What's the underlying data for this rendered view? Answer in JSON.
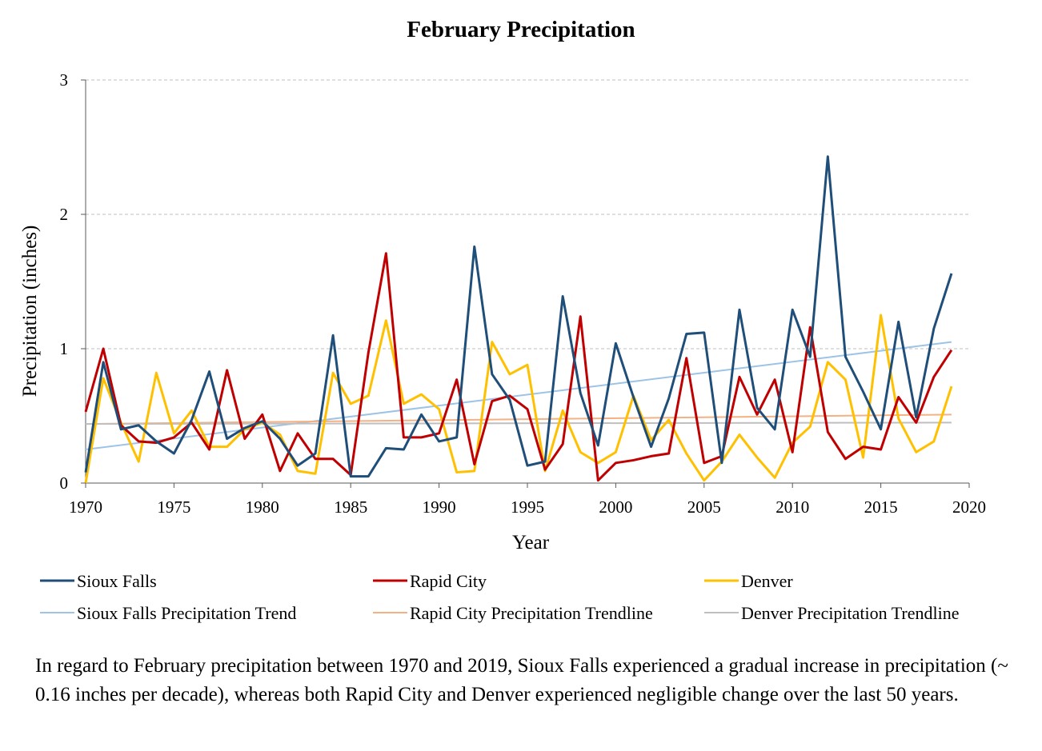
{
  "chart_data": {
    "type": "line",
    "title": "February Precipitation",
    "xlabel": "Year",
    "ylabel": "Precipitation (inches)",
    "xlim": [
      1970,
      2020
    ],
    "ylim": [
      0,
      3
    ],
    "x_ticks": [
      "1970",
      "1975",
      "1980",
      "1985",
      "1990",
      "1995",
      "2000",
      "2005",
      "2010",
      "2015",
      "2020"
    ],
    "y_ticks": [
      "0",
      "1",
      "2",
      "3"
    ],
    "grid": "horizontal dashed",
    "legend_position": "bottom",
    "x": [
      1970,
      1971,
      1972,
      1973,
      1974,
      1975,
      1976,
      1977,
      1978,
      1979,
      1980,
      1981,
      1982,
      1983,
      1984,
      1985,
      1986,
      1987,
      1988,
      1989,
      1990,
      1991,
      1992,
      1993,
      1994,
      1995,
      1996,
      1997,
      1998,
      1999,
      2000,
      2001,
      2002,
      2003,
      2004,
      2005,
      2006,
      2007,
      2008,
      2009,
      2010,
      2011,
      2012,
      2013,
      2014,
      2015,
      2016,
      2017,
      2018,
      2019
    ],
    "series": [
      {
        "name": "Sioux Falls",
        "color": "#1f4e79",
        "values": [
          0.08,
          0.9,
          0.4,
          0.43,
          0.31,
          0.22,
          0.47,
          0.83,
          0.33,
          0.41,
          0.46,
          0.33,
          0.13,
          0.22,
          1.1,
          0.05,
          0.05,
          0.26,
          0.25,
          0.51,
          0.31,
          0.34,
          1.76,
          0.81,
          0.62,
          0.13,
          0.16,
          1.39,
          0.67,
          0.28,
          1.04,
          0.64,
          0.27,
          0.63,
          1.11,
          1.12,
          0.15,
          1.29,
          0.56,
          0.4,
          1.29,
          0.94,
          2.43,
          0.94,
          0.68,
          0.4,
          1.2,
          0.49,
          1.15,
          1.56
        ]
      },
      {
        "name": "Rapid City",
        "color": "#c00000",
        "values": [
          0.53,
          1.0,
          0.43,
          0.31,
          0.3,
          0.34,
          0.45,
          0.25,
          0.84,
          0.33,
          0.51,
          0.09,
          0.37,
          0.18,
          0.18,
          0.06,
          0.97,
          1.71,
          0.34,
          0.34,
          0.37,
          0.77,
          0.14,
          0.61,
          0.65,
          0.55,
          0.1,
          0.29,
          1.24,
          0.02,
          0.15,
          0.17,
          0.2,
          0.22,
          0.93,
          0.15,
          0.2,
          0.79,
          0.51,
          0.77,
          0.23,
          1.16,
          0.38,
          0.18,
          0.27,
          0.25,
          0.64,
          0.45,
          0.79,
          0.99
        ]
      },
      {
        "name": "Denver",
        "color": "#ffc000",
        "values": [
          0.0,
          0.78,
          0.45,
          0.16,
          0.82,
          0.37,
          0.54,
          0.27,
          0.27,
          0.4,
          0.45,
          0.36,
          0.09,
          0.07,
          0.82,
          0.59,
          0.65,
          1.21,
          0.59,
          0.66,
          0.55,
          0.08,
          0.09,
          1.05,
          0.81,
          0.88,
          0.09,
          0.54,
          0.23,
          0.15,
          0.23,
          0.65,
          0.32,
          0.47,
          0.22,
          0.02,
          0.16,
          0.36,
          0.19,
          0.04,
          0.3,
          0.42,
          0.9,
          0.77,
          0.19,
          1.25,
          0.48,
          0.23,
          0.31,
          0.72
        ]
      }
    ],
    "trendlines": [
      {
        "name": "Sioux Falls Precipitation Trend",
        "color": "#9dc3e6",
        "start": [
          1970,
          0.25
        ],
        "end": [
          2019,
          1.05
        ]
      },
      {
        "name": "Rapid City Precipitation Trendline",
        "color": "#f4b183",
        "start": [
          1970,
          0.44
        ],
        "end": [
          2019,
          0.51
        ]
      },
      {
        "name": "Denver Precipitation Trendline",
        "color": "#bfbfbf",
        "start": [
          1970,
          0.44
        ],
        "end": [
          2019,
          0.45
        ]
      }
    ]
  },
  "caption": "In regard to February precipitation between 1970 and 2019, Sioux Falls experienced a gradual increase in precipitation (~ 0.16 inches per decade), whereas both Rapid City and Denver experienced negligible change over the last 50 years."
}
